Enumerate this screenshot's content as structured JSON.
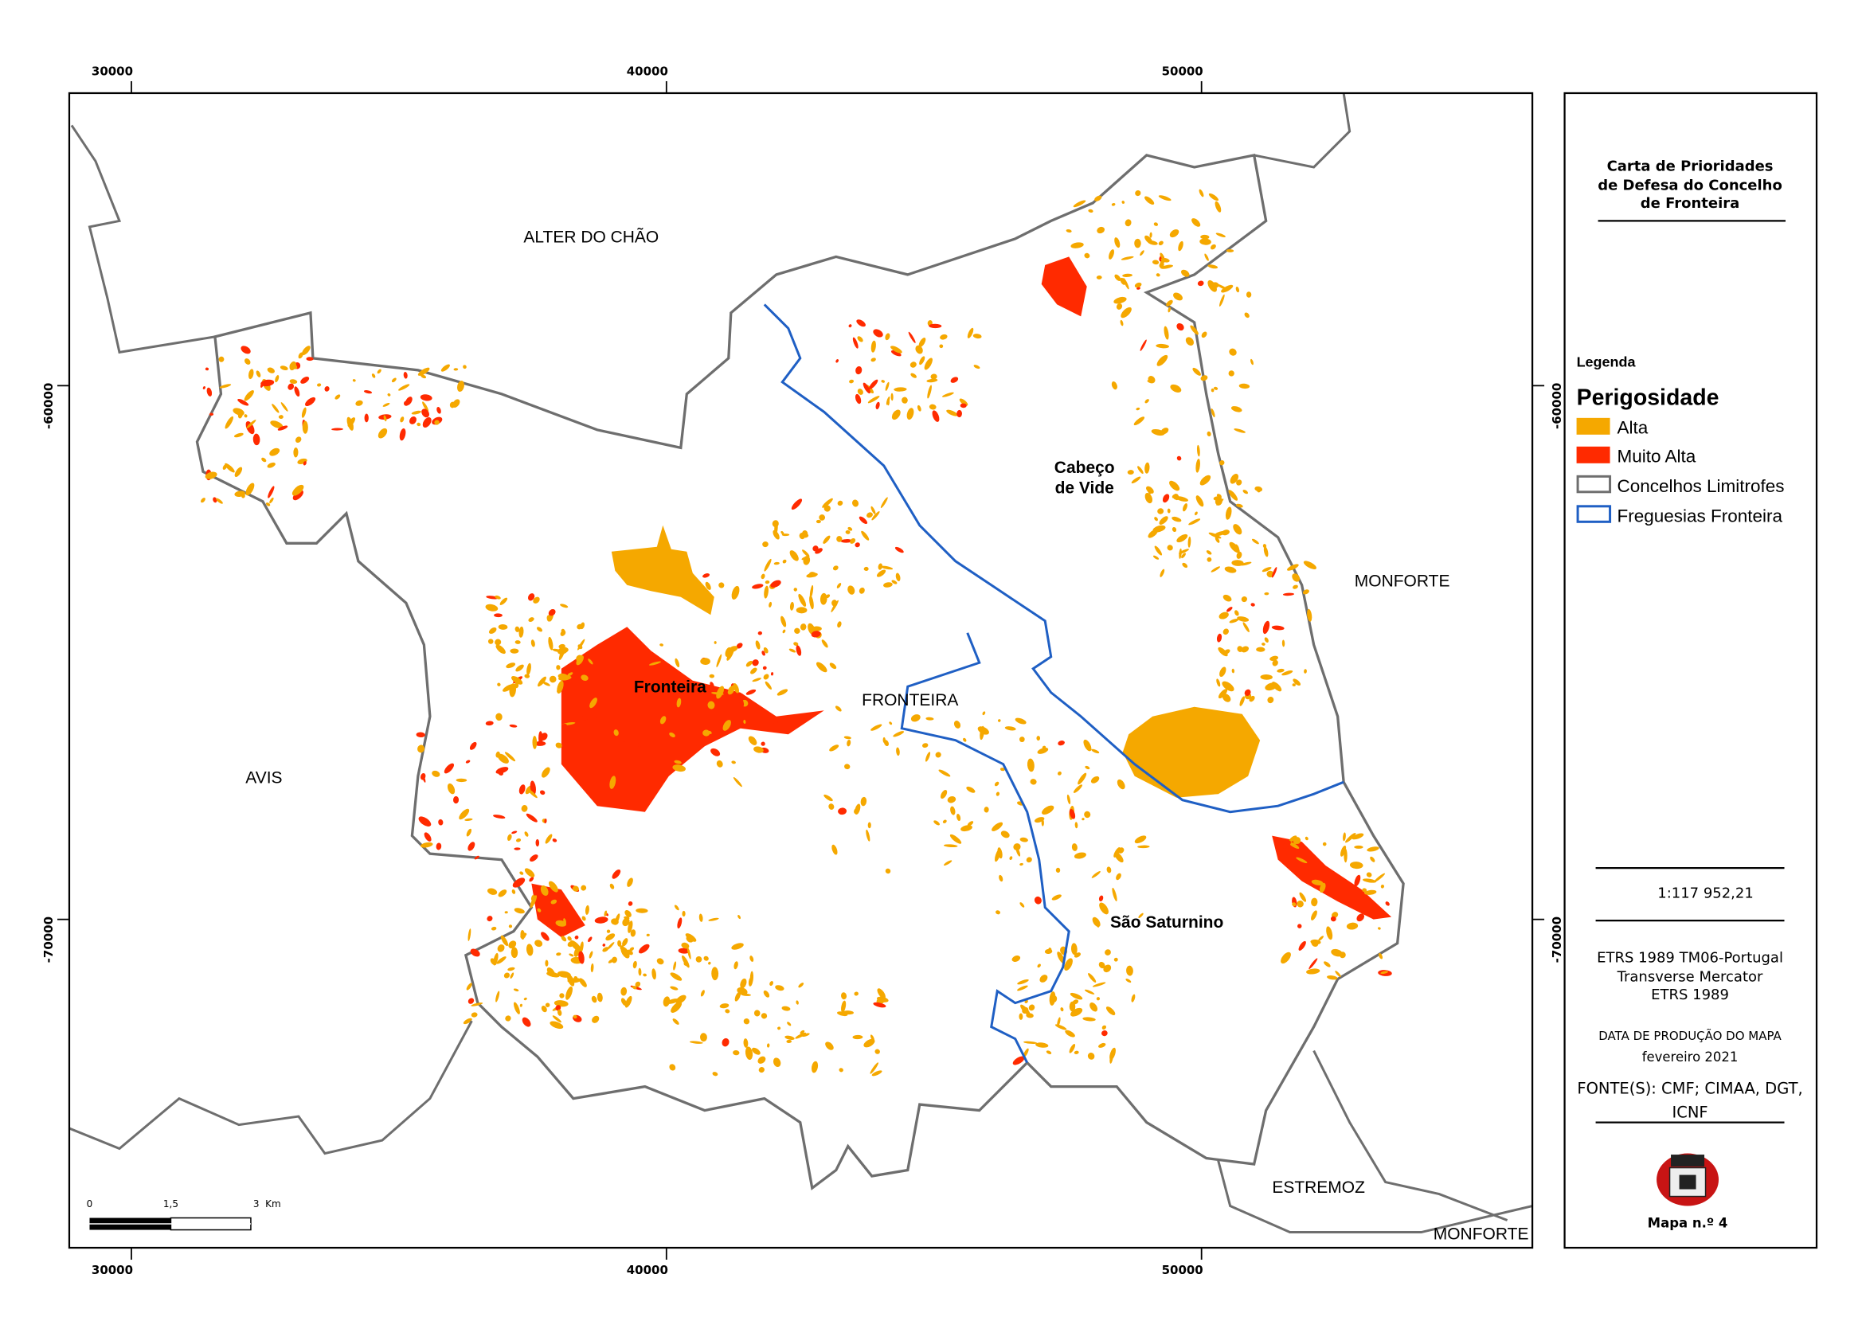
{
  "map": {
    "grid_labels": {
      "top": [
        "30000",
        "40000",
        "50000"
      ],
      "bottom": [
        "30000",
        "40000",
        "50000"
      ],
      "left": [
        "-60000",
        "-70000"
      ],
      "right": [
        "-60000",
        "-70000"
      ]
    },
    "places": [
      "ALTER DO CHÃO",
      "MONFORTE",
      "AVIS",
      "FRONTEIRA",
      "ESTREMOZ",
      "MONFORTE"
    ],
    "parishes": [
      "Fronteira",
      "Cabeço",
      "de Vide",
      "São Saturnino"
    ],
    "scale_bar": [
      "0",
      "1,5",
      "3  Km"
    ]
  },
  "panel": {
    "title": [
      "Carta de Prioridades",
      "de Defesa do Concelho",
      "de Fronteira"
    ],
    "legend_title": "Legenda",
    "legend_heading": "Perigosidade",
    "legend_items": [
      "Alta",
      "Muito Alta",
      "Concelhos Limitrofes",
      "Freguesias Fronteira"
    ],
    "scale": "1:117 952,21",
    "projection": [
      "ETRS 1989 TM06-Portugal",
      "Transverse Mercator",
      "ETRS 1989"
    ],
    "date_label": "DATA DE PRODUÇÃO DO MAPA",
    "date": "fevereiro 2021",
    "sources": [
      "FONTE(S): CMF; CIMAA, DGT,",
      "ICNF"
    ],
    "map_number": "Mapa n.º 4"
  }
}
